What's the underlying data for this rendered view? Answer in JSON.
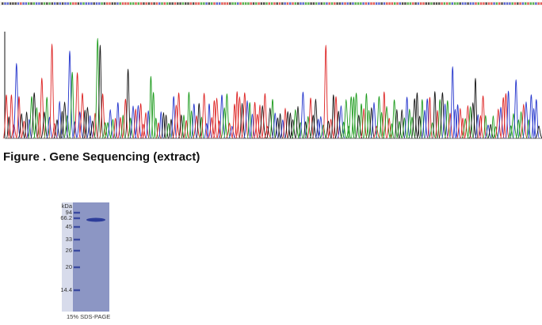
{
  "figure_caption": "Figure . Gene Sequencing (extract)",
  "gel": {
    "unit": "kDa",
    "markers": [
      "94",
      "66.2",
      "45",
      "33",
      "26",
      "20",
      "14.4"
    ],
    "caption": "15% SDS-PAGE"
  }
}
